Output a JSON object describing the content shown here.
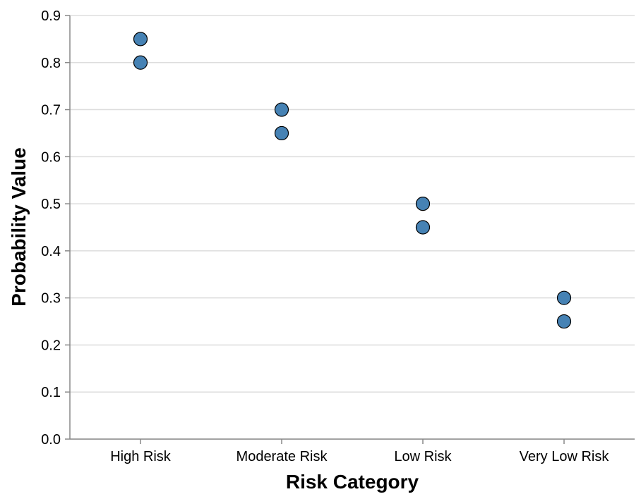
{
  "chart_data": {
    "type": "scatter",
    "title": "",
    "xlabel": "Risk Category",
    "ylabel": "Probability Value",
    "categories": [
      "High Risk",
      "Moderate Risk",
      "Low Risk",
      "Very Low Risk"
    ],
    "series": [
      {
        "name": "",
        "points": [
          {
            "category": "High Risk",
            "value": 0.85
          },
          {
            "category": "High Risk",
            "value": 0.8
          },
          {
            "category": "Moderate Risk",
            "value": 0.7
          },
          {
            "category": "Moderate Risk",
            "value": 0.65
          },
          {
            "category": "Low Risk",
            "value": 0.5
          },
          {
            "category": "Low Risk",
            "value": 0.45
          },
          {
            "category": "Very Low Risk",
            "value": 0.3
          },
          {
            "category": "Very Low Risk",
            "value": 0.25
          }
        ]
      }
    ],
    "ylim": [
      0,
      0.9
    ],
    "yticks": [
      "0.0",
      "0.1",
      "0.2",
      "0.3",
      "0.4",
      "0.5",
      "0.6",
      "0.7",
      "0.8",
      "0.9"
    ],
    "grid": true,
    "colors": {
      "point_fill": "#4682b4",
      "point_stroke": "#000000",
      "grid": "#dddddd",
      "axis": "#888888"
    }
  }
}
